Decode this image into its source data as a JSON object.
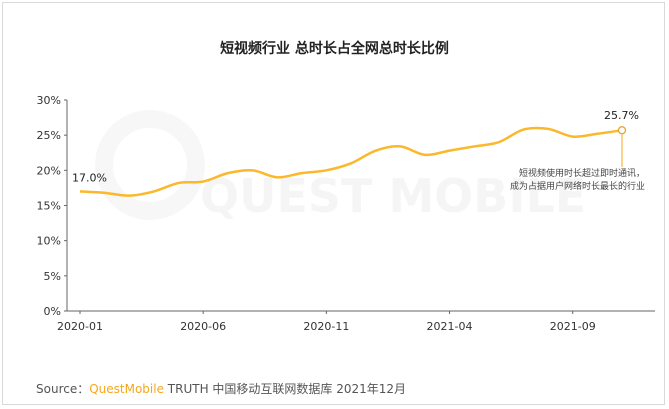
{
  "chart_data": {
    "type": "line",
    "title": "短视频行业 总时长占全网总时长比例",
    "xlabel": "",
    "ylabel": "",
    "x": [
      "2020-01",
      "2020-02",
      "2020-03",
      "2020-04",
      "2020-05",
      "2020-06",
      "2020-07",
      "2020-08",
      "2020-09",
      "2020-10",
      "2020-11",
      "2020-12",
      "2021-01",
      "2021-02",
      "2021-03",
      "2021-04",
      "2021-05",
      "2021-06",
      "2021-07",
      "2021-08",
      "2021-09",
      "2021-10",
      "2021-11"
    ],
    "x_tick_labels": [
      "2020-01",
      "2020-06",
      "2020-11",
      "2021-04",
      "2021-09"
    ],
    "series": [
      {
        "values": [
          17.0,
          16.8,
          16.4,
          17.0,
          18.2,
          18.4,
          19.6,
          20.0,
          19.0,
          19.6,
          20.0,
          21.0,
          22.8,
          23.4,
          22.2,
          22.8,
          23.4,
          24.0,
          25.8,
          25.9,
          24.8,
          25.2,
          25.7
        ]
      }
    ],
    "y_tick_labels": [
      "0%",
      "5%",
      "10%",
      "15%",
      "20%",
      "25%",
      "30%"
    ],
    "ylim": [
      0,
      30
    ],
    "grid": false,
    "line_color": "#fbb82b",
    "data_labels": {
      "first": "17.0%",
      "last": "25.7%"
    },
    "annotation": [
      "短视频使用时长超过即时通讯，",
      "成为占据用户网络时长最长的行业"
    ]
  },
  "source": {
    "prefix": "Source：",
    "brand": "QuestMobile",
    "rest": " TRUTH 中国移动互联网数据库 2021年12月"
  },
  "watermark": "QUEST MOBILE"
}
